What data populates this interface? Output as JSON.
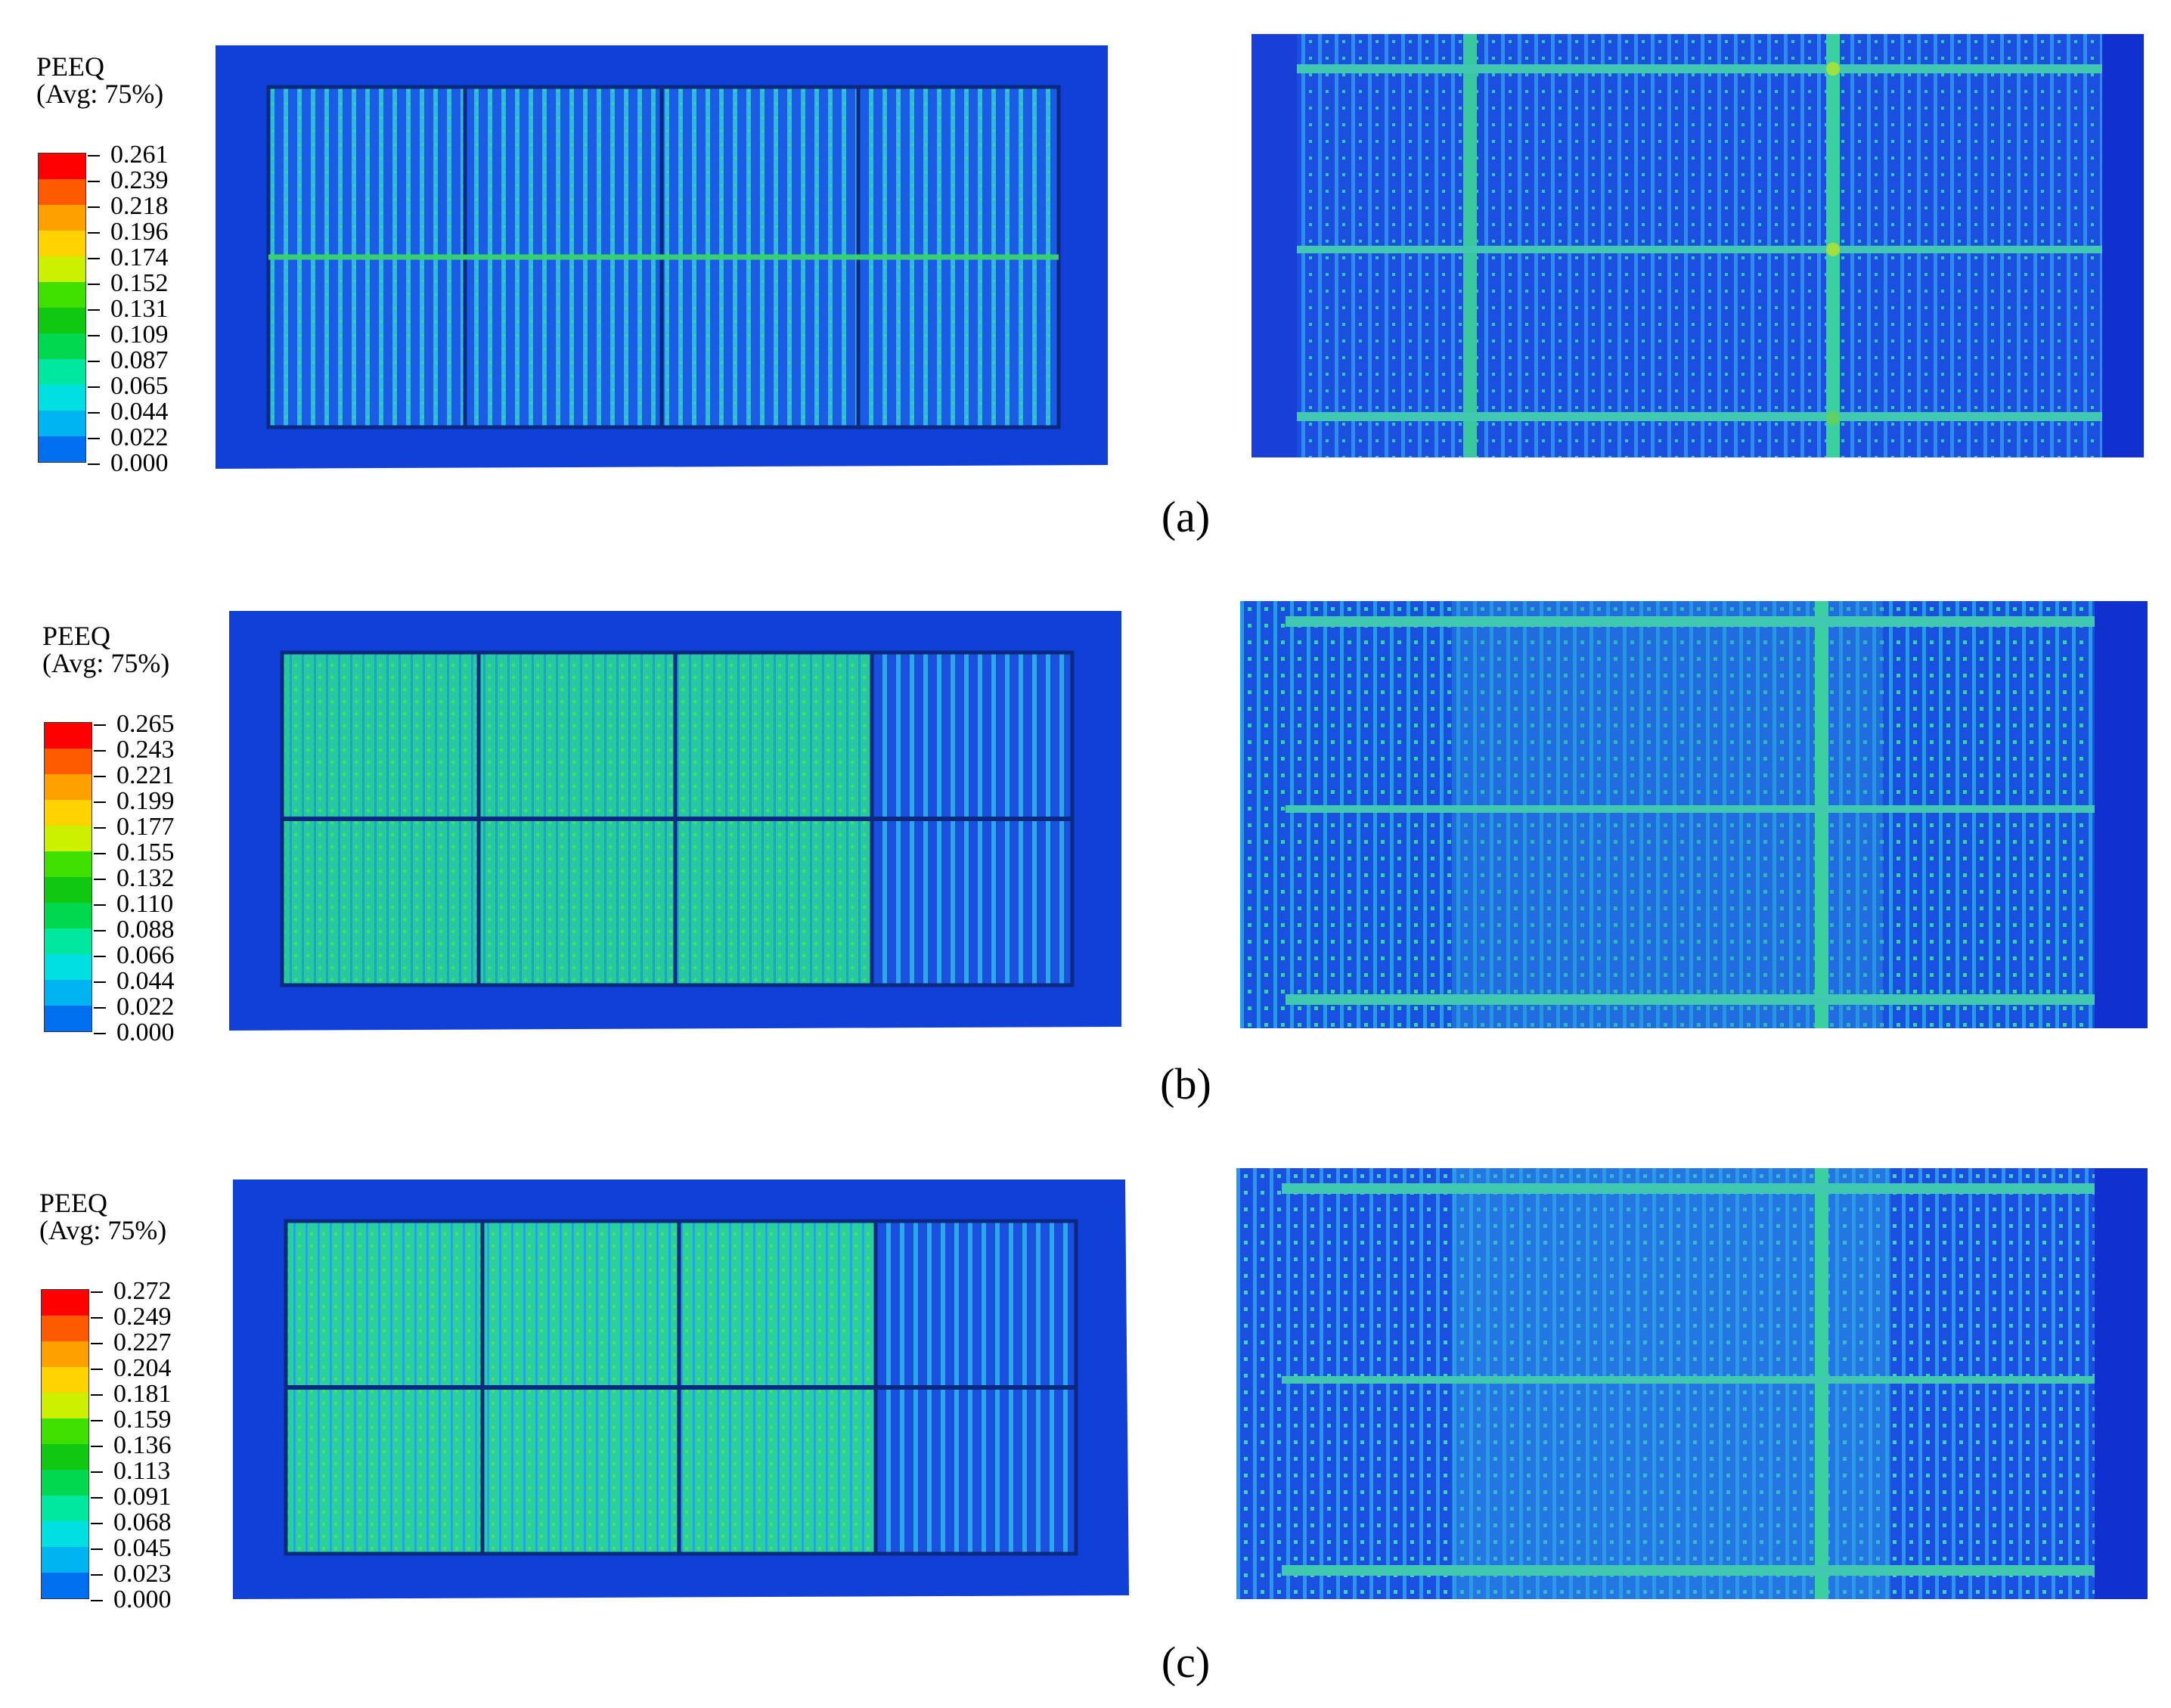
{
  "panels": [
    {
      "label": "(a)",
      "legend": {
        "title": "PEEQ",
        "subtitle": "(Avg: 75%)",
        "ticks": [
          "0.261",
          "0.239",
          "0.218",
          "0.196",
          "0.174",
          "0.152",
          "0.131",
          "0.109",
          "0.087",
          "0.065",
          "0.044",
          "0.022",
          "0.000"
        ]
      }
    },
    {
      "label": "(b)",
      "legend": {
        "title": "PEEQ",
        "subtitle": "(Avg: 75%)",
        "ticks": [
          "0.265",
          "0.243",
          "0.221",
          "0.199",
          "0.177",
          "0.155",
          "0.132",
          "0.110",
          "0.088",
          "0.066",
          "0.044",
          "0.022",
          "0.000"
        ]
      }
    },
    {
      "label": "(c)",
      "legend": {
        "title": "PEEQ",
        "subtitle": "(Avg: 75%)",
        "ticks": [
          "0.272",
          "0.249",
          "0.227",
          "0.204",
          "0.181",
          "0.159",
          "0.136",
          "0.113",
          "0.091",
          "0.068",
          "0.045",
          "0.023",
          "0.000"
        ]
      }
    }
  ],
  "colors": {
    "contour_scale": [
      "#ff0000",
      "#ff5a00",
      "#ffa000",
      "#ffd200",
      "#ccf000",
      "#3fe000",
      "#10c810",
      "#00d850",
      "#00e8a0",
      "#00e0e0",
      "#00b4f0",
      "#0070f0",
      "#0010ff"
    ],
    "frame_blue": "#1040d8",
    "panel_blue": "#1a5ce6",
    "mid_green": "#28d08a"
  }
}
